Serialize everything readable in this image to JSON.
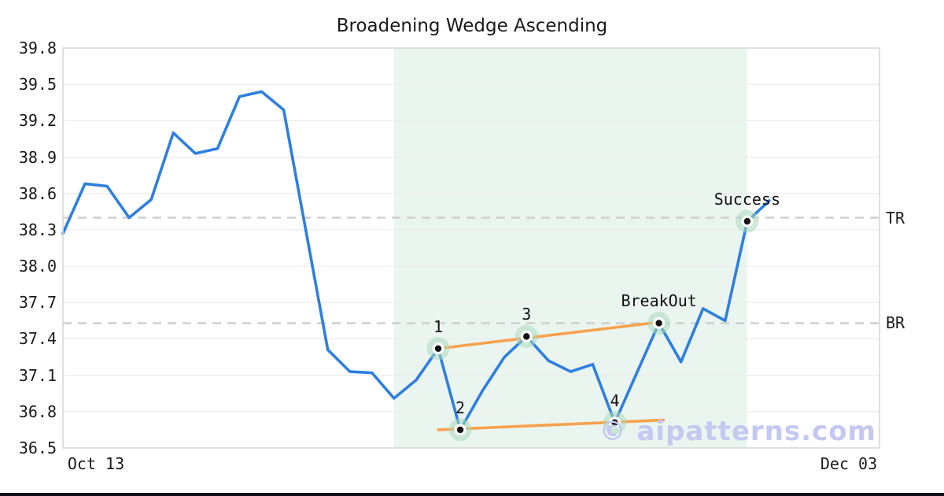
{
  "title": "Broadening Wedge Ascending",
  "watermark": "© aipatterns.com",
  "colors": {
    "price_line": "#2e7fe0",
    "trendline": "#f7a24e",
    "highlight_region": "#eaf5ef",
    "marker_halo": "#a9d8bc",
    "marker_dot": "#111111",
    "gridline": "#ececec",
    "spine": "#d7d7d7",
    "dashed_level": "#cfcfcf",
    "text": "#1a1a1a",
    "watermark": "#c5c8f1",
    "bottom_bar": "#0c0d16"
  },
  "chart_data": {
    "type": "line",
    "title": "Broadening Wedge Ascending",
    "xlabel": "",
    "ylabel": "",
    "ylim": [
      36.5,
      39.8
    ],
    "y_tick_step": 0.3,
    "y_tick_labels": [
      "39.8",
      "39.5",
      "39.2",
      "38.9",
      "38.6",
      "38.3",
      "38.0",
      "37.7",
      "37.4",
      "37.1",
      "36.8",
      "36.5"
    ],
    "x_tick_labels": [
      "Oct 13",
      "Dec 03"
    ],
    "grid": "horizontal",
    "legend": false,
    "prices": [
      38.27,
      38.68,
      38.66,
      38.4,
      38.55,
      39.1,
      38.93,
      38.97,
      39.4,
      39.44,
      39.29,
      38.3,
      37.31,
      37.13,
      37.12,
      36.91,
      37.06,
      37.32,
      36.65,
      36.97,
      37.25,
      37.42,
      37.22,
      37.13,
      37.19,
      36.71,
      37.12,
      37.53,
      37.21,
      37.65,
      37.55,
      38.37,
      38.54
    ],
    "highlight_span_indices": [
      15,
      31
    ],
    "annotations": [
      {
        "label": "1",
        "index": 17,
        "value": 37.32
      },
      {
        "label": "2",
        "index": 18,
        "value": 36.65
      },
      {
        "label": "3",
        "index": 21,
        "value": 37.42
      },
      {
        "label": "4",
        "index": 25,
        "value": 36.71
      },
      {
        "label": "BreakOut",
        "index": 27,
        "value": 37.53
      },
      {
        "label": "Success",
        "index": 31,
        "value": 38.37
      }
    ],
    "trendlines": [
      {
        "name": "upper",
        "from": {
          "index": 17,
          "value": 37.32
        },
        "to": {
          "index": 27.1,
          "value": 37.54
        }
      },
      {
        "name": "lower",
        "from": {
          "index": 17,
          "value": 36.65
        },
        "to": {
          "index": 27.2,
          "value": 36.73
        }
      }
    ],
    "levels": [
      {
        "label": "TR",
        "value": 38.4
      },
      {
        "label": "BR",
        "value": 37.53
      }
    ]
  }
}
